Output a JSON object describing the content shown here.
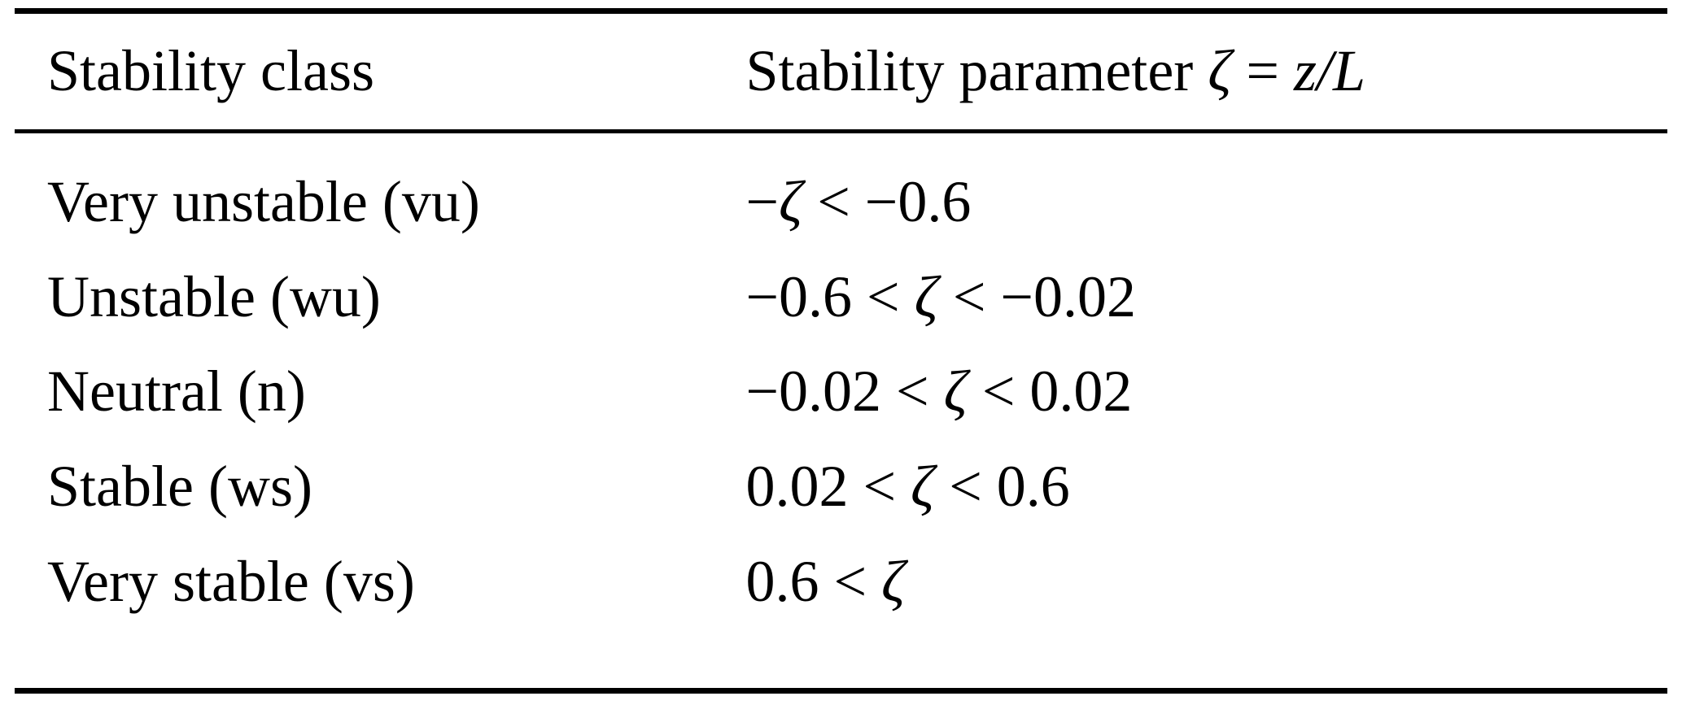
{
  "table": {
    "headers": {
      "col1": "Stability class",
      "col2": "Stability parameter ζ = z/L"
    },
    "rows": [
      {
        "class": "Very unstable (vu)",
        "param": "−ζ < −0.6"
      },
      {
        "class": "Unstable (wu)",
        "param": "−0.6 < ζ < −0.02"
      },
      {
        "class": "Neutral (n)",
        "param": "−0.02 < ζ < 0.02"
      },
      {
        "class": "Stable (ws)",
        "param": "0.02 < ζ < 0.6"
      },
      {
        "class": "Very stable (vs)",
        "param": "0.6 < ζ"
      }
    ],
    "text_color": "#000000",
    "rule_color": "#000000"
  }
}
